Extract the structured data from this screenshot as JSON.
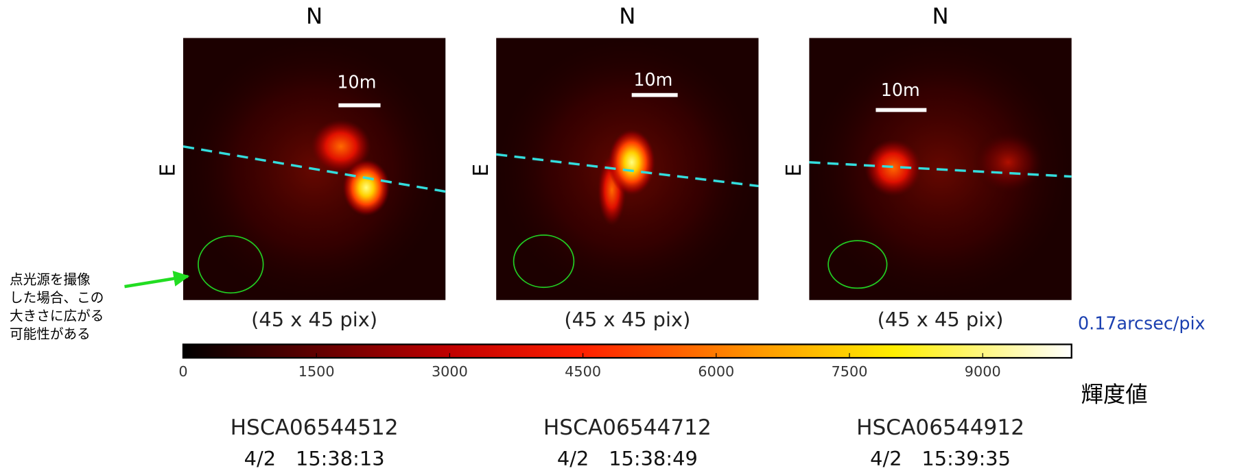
{
  "panels": [
    {
      "north": "N",
      "east": "E",
      "scale_label": "10m",
      "size_label": "(45 x 45 pix)",
      "id": "HSCA06544512",
      "time": "4/2　15:38:13"
    },
    {
      "north": "N",
      "east": "E",
      "scale_label": "10m",
      "size_label": "(45 x 45 pix)",
      "id": "HSCA06544712",
      "time": "4/2　15:38:49"
    },
    {
      "north": "N",
      "east": "E",
      "scale_label": "10m",
      "size_label": "(45 x 45 pix)",
      "id": "HSCA06544912",
      "time": "4/2　15:39:35"
    }
  ],
  "note": [
    "点光源を撮像",
    "した場合、この",
    "大きさに広がる",
    "可能性がある"
  ],
  "pixel_scale": "0.17arcsec/pix",
  "colorbar": {
    "label": "輝度値",
    "lim": [
      0,
      10000
    ],
    "ticks": [
      0,
      1500,
      3000,
      4500,
      6000,
      7500,
      9000
    ]
  }
}
